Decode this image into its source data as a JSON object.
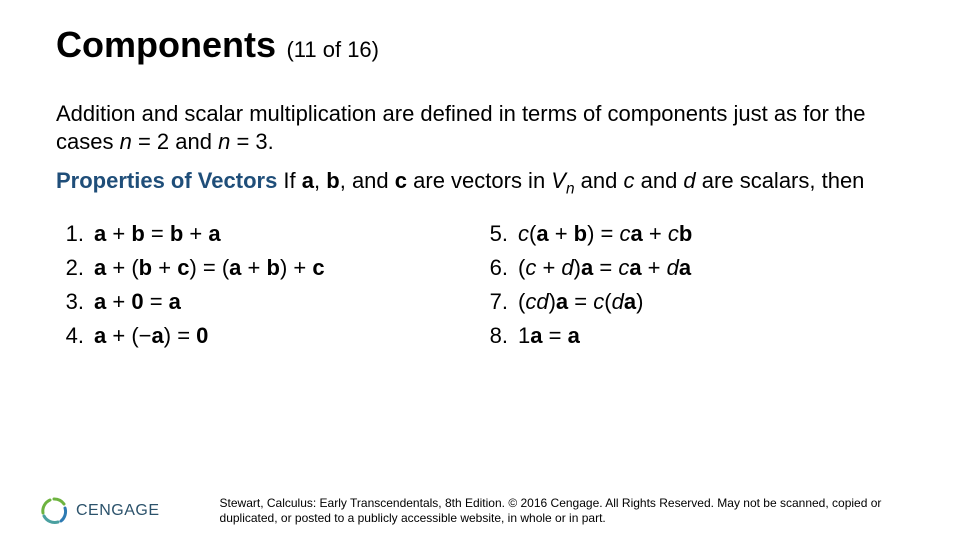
{
  "title": {
    "text": "Components",
    "pager": "(11 of 16)"
  },
  "intro": {
    "line1a": "Addition and scalar multiplication are defined in terms of components just as for the cases ",
    "n": "n",
    "eq2": " = 2 and ",
    "eq3": " = 3.",
    "props_label": "Properties of Vectors",
    "if": " If ",
    "a": "a",
    "b": "b",
    "c_vec": "c",
    "are_vectors": " are vectors in ",
    "V": "V",
    "n_sub": "n",
    "and": " and ",
    "c_scalar": "c",
    "and2": " and ",
    "d_scalar": "d",
    "are_scalars": " are scalars, then",
    "comma": ", "
  },
  "props_left": [
    {
      "num": "1.",
      "parts": [
        {
          "t": "a",
          "b": 1
        },
        {
          "t": " + "
        },
        {
          "t": "b",
          "b": 1
        },
        {
          "t": " = "
        },
        {
          "t": "b",
          "b": 1
        },
        {
          "t": " + "
        },
        {
          "t": "a",
          "b": 1
        }
      ]
    },
    {
      "num": "2.",
      "parts": [
        {
          "t": "a",
          "b": 1
        },
        {
          "t": " + ("
        },
        {
          "t": "b",
          "b": 1
        },
        {
          "t": " + "
        },
        {
          "t": "c",
          "b": 1
        },
        {
          "t": ") = ("
        },
        {
          "t": "a",
          "b": 1
        },
        {
          "t": " + "
        },
        {
          "t": "b",
          "b": 1
        },
        {
          "t": ") + "
        },
        {
          "t": "c",
          "b": 1
        }
      ]
    },
    {
      "num": "3.",
      "parts": [
        {
          "t": "a",
          "b": 1
        },
        {
          "t": " + "
        },
        {
          "t": "0",
          "b": 1
        },
        {
          "t": " = "
        },
        {
          "t": "a",
          "b": 1
        }
      ]
    },
    {
      "num": "4.",
      "parts": [
        {
          "t": "a",
          "b": 1
        },
        {
          "t": " + (−"
        },
        {
          "t": "a",
          "b": 1
        },
        {
          "t": ") = "
        },
        {
          "t": "0",
          "b": 1
        }
      ]
    }
  ],
  "props_right": [
    {
      "num": "5.",
      "parts": [
        {
          "t": "c",
          "i": 1
        },
        {
          "t": "("
        },
        {
          "t": "a",
          "b": 1
        },
        {
          "t": " + "
        },
        {
          "t": "b",
          "b": 1
        },
        {
          "t": ") = "
        },
        {
          "t": "c",
          "i": 1
        },
        {
          "t": "a",
          "b": 1
        },
        {
          "t": " + "
        },
        {
          "t": "c",
          "i": 1
        },
        {
          "t": "b",
          "b": 1
        }
      ]
    },
    {
      "num": "6.",
      "parts": [
        {
          "t": "("
        },
        {
          "t": "c",
          "i": 1
        },
        {
          "t": " + "
        },
        {
          "t": "d",
          "i": 1
        },
        {
          "t": ")"
        },
        {
          "t": "a",
          "b": 1
        },
        {
          "t": " = "
        },
        {
          "t": "c",
          "i": 1
        },
        {
          "t": "a",
          "b": 1
        },
        {
          "t": " + "
        },
        {
          "t": "d",
          "i": 1
        },
        {
          "t": "a",
          "b": 1
        }
      ]
    },
    {
      "num": "7.",
      "parts": [
        {
          "t": "("
        },
        {
          "t": "cd",
          "i": 1
        },
        {
          "t": ")"
        },
        {
          "t": "a",
          "b": 1
        },
        {
          "t": " = "
        },
        {
          "t": "c",
          "i": 1
        },
        {
          "t": "("
        },
        {
          "t": "d",
          "i": 1
        },
        {
          "t": "a",
          "b": 1
        },
        {
          "t": ")"
        }
      ]
    },
    {
      "num": "8.",
      "parts": [
        {
          "t": "1"
        },
        {
          "t": "a",
          "b": 1
        },
        {
          "t": " = "
        },
        {
          "t": "a",
          "b": 1
        }
      ]
    }
  ],
  "footer": {
    "logo_text": "CENGAGE",
    "copy": "Stewart, Calculus: Early Transcendentals, 8th Edition. © 2016 Cengage. All Rights Reserved. May not be scanned, copied or duplicated, or posted to a publicly accessible website, in whole or in part."
  },
  "colors": {
    "accent": "#1f4e79",
    "logo_teal": "#2b526b",
    "logo_dot1": "#6db33f",
    "logo_dot2": "#2e7bb3",
    "logo_dot3": "#4aa0a0"
  }
}
